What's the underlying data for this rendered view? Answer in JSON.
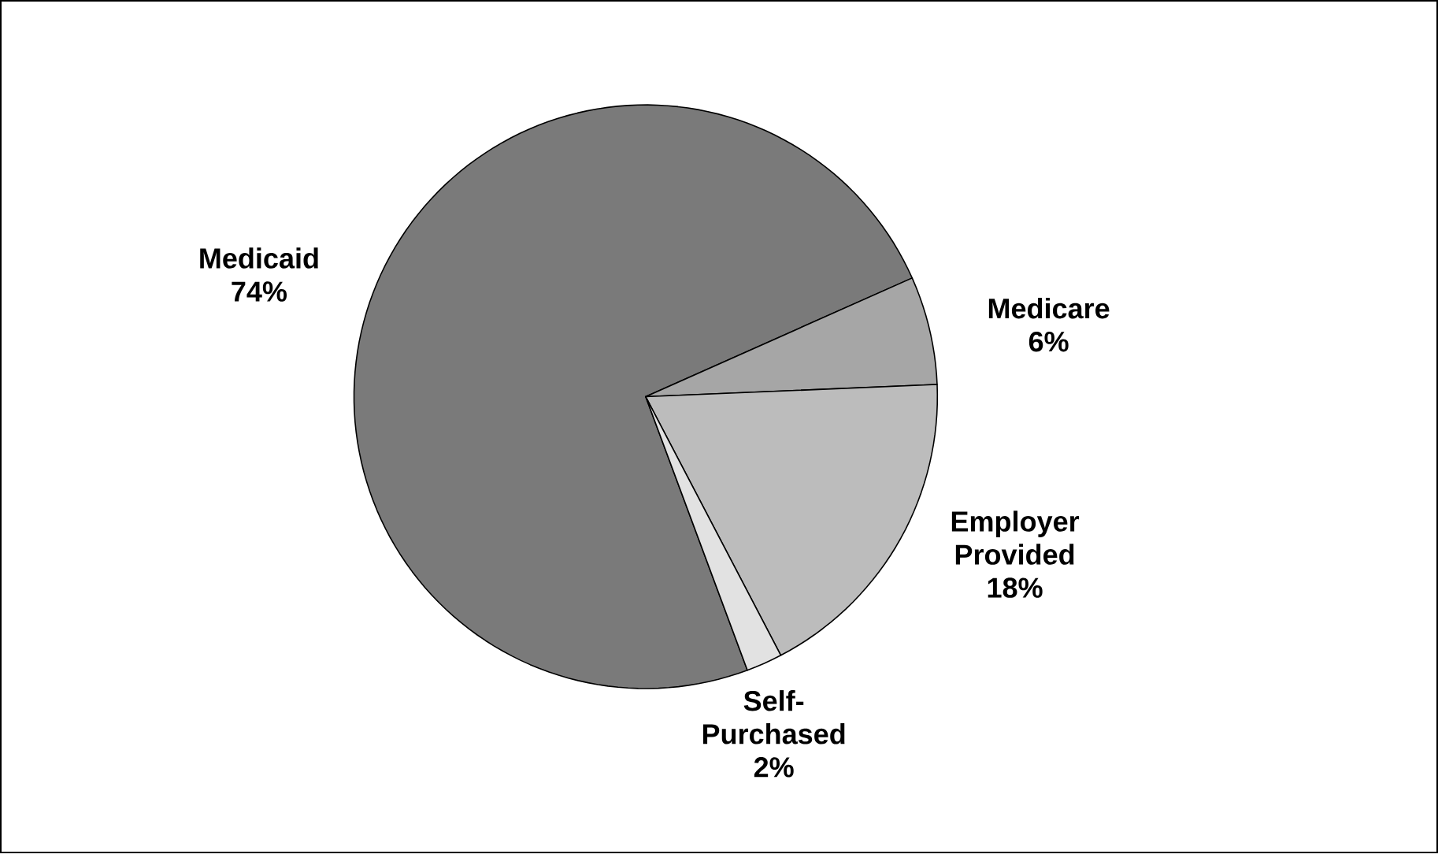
{
  "chart_data": {
    "type": "pie",
    "categories": [
      "Medicaid",
      "Medicare",
      "Employer Provided",
      "Self-Purchased"
    ],
    "values": [
      74,
      6,
      18,
      2
    ],
    "value_labels": [
      "74%",
      "6%",
      "18%",
      "2%"
    ],
    "colors": [
      "#7a7a7a",
      "#a6a6a6",
      "#bcbcbc",
      "#e2e2e2"
    ]
  }
}
